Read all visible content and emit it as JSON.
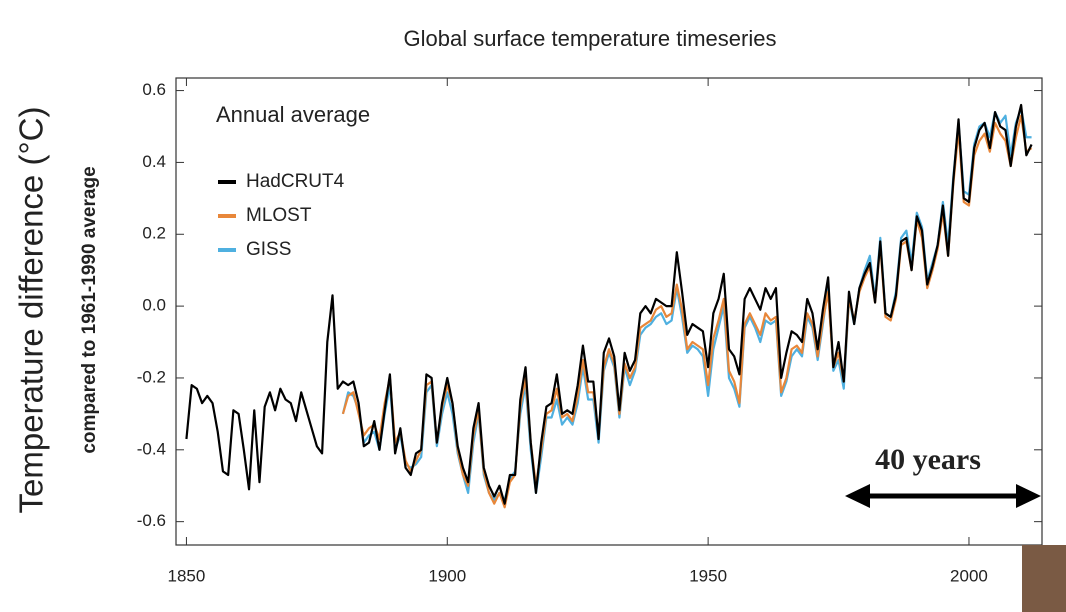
{
  "chart_data": {
    "type": "line",
    "title": "Global surface temperature timeseries",
    "ylabel": "Temperature difference (°C)",
    "ylabel2": "compared to 1961-1990 average",
    "legend_title": "Annual average",
    "legend": "upper left",
    "annotation": "40 years",
    "xlim": [
      1848,
      2014
    ],
    "xticks": [
      1850,
      1900,
      1950,
      2000
    ],
    "ylim": [
      -0.665,
      0.635
    ],
    "yticks": [
      0.6,
      0.4,
      0.2,
      {
        "value": 0,
        "label": "0.0"
      },
      -0.2,
      -0.4,
      -0.6
    ],
    "x": [
      1850,
      1851,
      1852,
      1853,
      1854,
      1855,
      1856,
      1857,
      1858,
      1859,
      1860,
      1861,
      1862,
      1863,
      1864,
      1865,
      1866,
      1867,
      1868,
      1869,
      1870,
      1871,
      1872,
      1873,
      1874,
      1875,
      1876,
      1877,
      1878,
      1879,
      1880,
      1881,
      1882,
      1883,
      1884,
      1885,
      1886,
      1887,
      1888,
      1889,
      1890,
      1891,
      1892,
      1893,
      1894,
      1895,
      1896,
      1897,
      1898,
      1899,
      1900,
      1901,
      1902,
      1903,
      1904,
      1905,
      1906,
      1907,
      1908,
      1909,
      1910,
      1911,
      1912,
      1913,
      1914,
      1915,
      1916,
      1917,
      1918,
      1919,
      1920,
      1921,
      1922,
      1923,
      1924,
      1925,
      1926,
      1927,
      1928,
      1929,
      1930,
      1931,
      1932,
      1933,
      1934,
      1935,
      1936,
      1937,
      1938,
      1939,
      1940,
      1941,
      1942,
      1943,
      1944,
      1945,
      1946,
      1947,
      1948,
      1949,
      1950,
      1951,
      1952,
      1953,
      1954,
      1955,
      1956,
      1957,
      1958,
      1959,
      1960,
      1961,
      1962,
      1963,
      1964,
      1965,
      1966,
      1967,
      1968,
      1969,
      1970,
      1971,
      1972,
      1973,
      1974,
      1975,
      1976,
      1977,
      1978,
      1979,
      1980,
      1981,
      1982,
      1983,
      1984,
      1985,
      1986,
      1987,
      1988,
      1989,
      1990,
      1991,
      1992,
      1993,
      1994,
      1995,
      1996,
      1997,
      1998,
      1999,
      2000,
      2001,
      2002,
      2003,
      2004,
      2005,
      2006,
      2007,
      2008,
      2009,
      2010,
      2011,
      2012
    ],
    "series": [
      {
        "name": "HadCRUT4",
        "color": "#000000",
        "values": [
          -0.37,
          -0.22,
          -0.23,
          -0.27,
          -0.25,
          -0.27,
          -0.35,
          -0.46,
          -0.47,
          -0.29,
          -0.3,
          -0.4,
          -0.51,
          -0.29,
          -0.49,
          -0.28,
          -0.24,
          -0.29,
          -0.23,
          -0.26,
          -0.27,
          -0.32,
          -0.24,
          -0.29,
          -0.34,
          -0.39,
          -0.41,
          -0.1,
          0.03,
          -0.23,
          -0.21,
          -0.22,
          -0.21,
          -0.27,
          -0.39,
          -0.38,
          -0.32,
          -0.4,
          -0.29,
          -0.19,
          -0.41,
          -0.34,
          -0.45,
          -0.47,
          -0.41,
          -0.4,
          -0.19,
          -0.2,
          -0.38,
          -0.27,
          -0.2,
          -0.27,
          -0.39,
          -0.45,
          -0.49,
          -0.34,
          -0.27,
          -0.45,
          -0.5,
          -0.53,
          -0.5,
          -0.55,
          -0.47,
          -0.47,
          -0.26,
          -0.17,
          -0.38,
          -0.52,
          -0.38,
          -0.28,
          -0.27,
          -0.19,
          -0.3,
          -0.29,
          -0.3,
          -0.22,
          -0.11,
          -0.21,
          -0.21,
          -0.37,
          -0.13,
          -0.09,
          -0.14,
          -0.29,
          -0.13,
          -0.18,
          -0.15,
          -0.02,
          0.0,
          -0.02,
          0.02,
          0.01,
          0.0,
          0.0,
          0.15,
          0.04,
          -0.08,
          -0.05,
          -0.06,
          -0.07,
          -0.17,
          -0.02,
          0.02,
          0.09,
          -0.12,
          -0.14,
          -0.19,
          0.02,
          0.05,
          0.02,
          -0.01,
          0.05,
          0.02,
          0.05,
          -0.2,
          -0.13,
          -0.07,
          -0.08,
          -0.1,
          0.02,
          -0.02,
          -0.12,
          -0.01,
          0.08,
          -0.17,
          -0.1,
          -0.21,
          0.04,
          -0.05,
          0.05,
          0.09,
          0.12,
          0.01,
          0.18,
          -0.02,
          -0.03,
          0.03,
          0.18,
          0.19,
          0.1,
          0.25,
          0.21,
          0.06,
          0.11,
          0.17,
          0.28,
          0.14,
          0.35,
          0.52,
          0.3,
          0.29,
          0.44,
          0.49,
          0.51,
          0.44,
          0.54,
          0.5,
          0.49,
          0.39,
          0.5,
          0.56,
          0.42,
          0.45
        ]
      },
      {
        "name": "MLOST",
        "color": "#e8873a",
        "values": [
          null,
          null,
          null,
          null,
          null,
          null,
          null,
          null,
          null,
          null,
          null,
          null,
          null,
          null,
          null,
          null,
          null,
          null,
          null,
          null,
          null,
          null,
          null,
          null,
          null,
          null,
          null,
          null,
          null,
          null,
          -0.3,
          -0.25,
          -0.24,
          -0.3,
          -0.36,
          -0.34,
          -0.33,
          -0.37,
          -0.27,
          -0.2,
          -0.38,
          -0.35,
          -0.43,
          -0.46,
          -0.43,
          -0.4,
          -0.22,
          -0.21,
          -0.38,
          -0.28,
          -0.22,
          -0.27,
          -0.4,
          -0.47,
          -0.5,
          -0.36,
          -0.29,
          -0.46,
          -0.52,
          -0.55,
          -0.52,
          -0.56,
          -0.49,
          -0.47,
          -0.28,
          -0.2,
          -0.38,
          -0.5,
          -0.4,
          -0.3,
          -0.29,
          -0.23,
          -0.31,
          -0.3,
          -0.32,
          -0.25,
          -0.15,
          -0.24,
          -0.24,
          -0.36,
          -0.17,
          -0.12,
          -0.16,
          -0.3,
          -0.16,
          -0.2,
          -0.17,
          -0.06,
          -0.05,
          -0.04,
          -0.01,
          0.0,
          -0.03,
          -0.02,
          0.06,
          -0.01,
          -0.12,
          -0.1,
          -0.11,
          -0.12,
          -0.22,
          -0.09,
          -0.04,
          0.02,
          -0.18,
          -0.21,
          -0.27,
          -0.05,
          -0.02,
          -0.05,
          -0.08,
          -0.02,
          -0.04,
          -0.03,
          -0.24,
          -0.2,
          -0.12,
          -0.11,
          -0.13,
          -0.02,
          -0.05,
          -0.14,
          -0.04,
          0.04,
          -0.17,
          -0.13,
          -0.21,
          0.02,
          -0.04,
          0.04,
          0.08,
          0.11,
          0.01,
          0.17,
          -0.03,
          -0.04,
          0.02,
          0.17,
          0.18,
          0.1,
          0.24,
          0.19,
          0.05,
          0.1,
          0.16,
          0.26,
          0.14,
          0.34,
          0.49,
          0.29,
          0.28,
          0.42,
          0.46,
          0.48,
          0.43,
          0.51,
          0.48,
          0.46,
          0.39,
          0.47,
          0.53,
          0.43,
          0.44
        ]
      },
      {
        "name": "GISS",
        "color": "#4fb0e0",
        "values": [
          null,
          null,
          null,
          null,
          null,
          null,
          null,
          null,
          null,
          null,
          null,
          null,
          null,
          null,
          null,
          null,
          null,
          null,
          null,
          null,
          null,
          null,
          null,
          null,
          null,
          null,
          null,
          null,
          null,
          null,
          -0.3,
          -0.24,
          -0.25,
          -0.29,
          -0.38,
          -0.36,
          -0.35,
          -0.4,
          -0.3,
          -0.22,
          -0.4,
          -0.36,
          -0.44,
          -0.45,
          -0.44,
          -0.42,
          -0.24,
          -0.22,
          -0.39,
          -0.3,
          -0.24,
          -0.3,
          -0.41,
          -0.47,
          -0.52,
          -0.38,
          -0.3,
          -0.47,
          -0.52,
          -0.54,
          -0.52,
          -0.54,
          -0.48,
          -0.46,
          -0.3,
          -0.22,
          -0.4,
          -0.52,
          -0.42,
          -0.31,
          -0.31,
          -0.26,
          -0.33,
          -0.31,
          -0.33,
          -0.27,
          -0.17,
          -0.26,
          -0.26,
          -0.38,
          -0.18,
          -0.13,
          -0.17,
          -0.31,
          -0.17,
          -0.22,
          -0.18,
          -0.08,
          -0.06,
          -0.05,
          -0.03,
          -0.02,
          -0.05,
          -0.04,
          0.05,
          -0.03,
          -0.13,
          -0.11,
          -0.12,
          -0.14,
          -0.25,
          -0.12,
          -0.06,
          0.0,
          -0.2,
          -0.23,
          -0.28,
          -0.06,
          -0.03,
          -0.06,
          -0.1,
          -0.04,
          -0.05,
          -0.04,
          -0.25,
          -0.21,
          -0.14,
          -0.12,
          -0.14,
          -0.03,
          -0.06,
          -0.15,
          -0.05,
          0.05,
          -0.18,
          -0.15,
          -0.23,
          0.02,
          -0.05,
          0.05,
          0.1,
          0.14,
          0.02,
          0.19,
          -0.02,
          -0.03,
          0.04,
          0.19,
          0.21,
          0.12,
          0.26,
          0.22,
          0.07,
          0.12,
          0.17,
          0.29,
          0.17,
          0.36,
          0.51,
          0.32,
          0.31,
          0.45,
          0.5,
          0.51,
          0.47,
          0.54,
          0.51,
          0.53,
          0.42,
          0.51,
          0.55,
          0.47,
          0.47
        ]
      }
    ]
  }
}
